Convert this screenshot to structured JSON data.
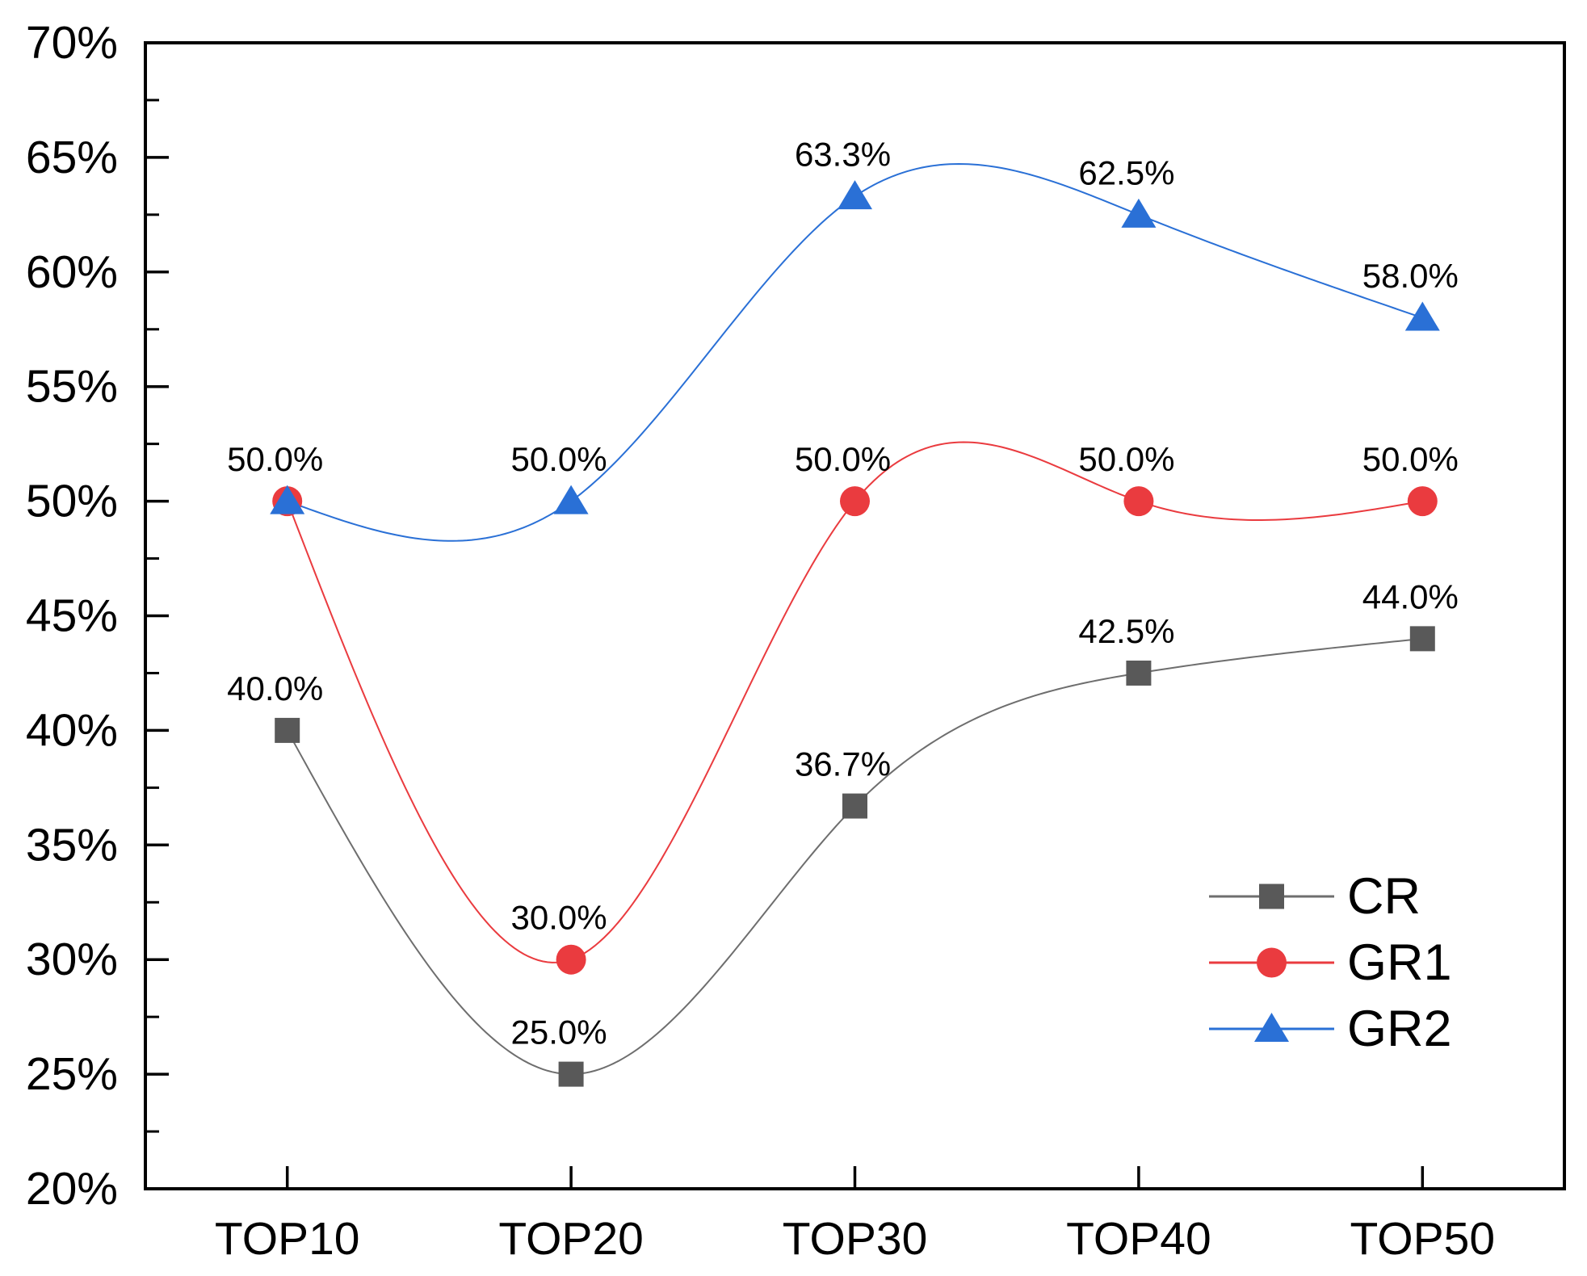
{
  "chart_data": {
    "type": "line",
    "title": "",
    "subtitle": "",
    "categories": [
      "TOP10",
      "TOP20",
      "TOP30",
      "TOP40",
      "TOP50"
    ],
    "y_axis": {
      "min": 20,
      "max": 70,
      "major_step": 5,
      "minor_step": 2.5,
      "tick_labels": [
        "20%",
        "25%",
        "30%",
        "35%",
        "40%",
        "45%",
        "50%",
        "55%",
        "60%",
        "65%",
        "70%"
      ],
      "unit": "%"
    },
    "x_axis": {
      "tick_labels": [
        "TOP10",
        "TOP20",
        "TOP30",
        "TOP40",
        "TOP50"
      ]
    },
    "series": [
      {
        "name": "CR",
        "marker": "square",
        "line_color": "#6e6e6e",
        "marker_color": "#595959",
        "values": [
          40.0,
          25.0,
          36.7,
          42.5,
          44.0
        ],
        "labels": [
          "40.0%",
          "25.0%",
          "36.7%",
          "42.5%",
          "44.0%"
        ]
      },
      {
        "name": "GR1",
        "marker": "circle",
        "line_color": "#ea3b3f",
        "marker_color": "#ea3b3f",
        "values": [
          50.0,
          30.0,
          50.0,
          50.0,
          50.0
        ],
        "labels": [
          null,
          "30.0%",
          "50.0%",
          "50.0%",
          "50.0%"
        ]
      },
      {
        "name": "GR2",
        "marker": "triangle",
        "line_color": "#2a70d6",
        "marker_color": "#2a70d6",
        "values": [
          50.0,
          50.0,
          63.3,
          62.5,
          58.0
        ],
        "labels": [
          "50.0%",
          "50.0%",
          "63.3%",
          "62.5%",
          "58.0%"
        ]
      }
    ],
    "legend": {
      "position": "bottom-right",
      "entries": [
        "CR",
        "GR1",
        "GR2"
      ]
    },
    "line_style": "spline",
    "grid": false,
    "axis_color": "#000000",
    "text_color": "#000000",
    "background": "#ffffff",
    "label_offset": {
      "dx": -15,
      "dy": -52
    }
  }
}
